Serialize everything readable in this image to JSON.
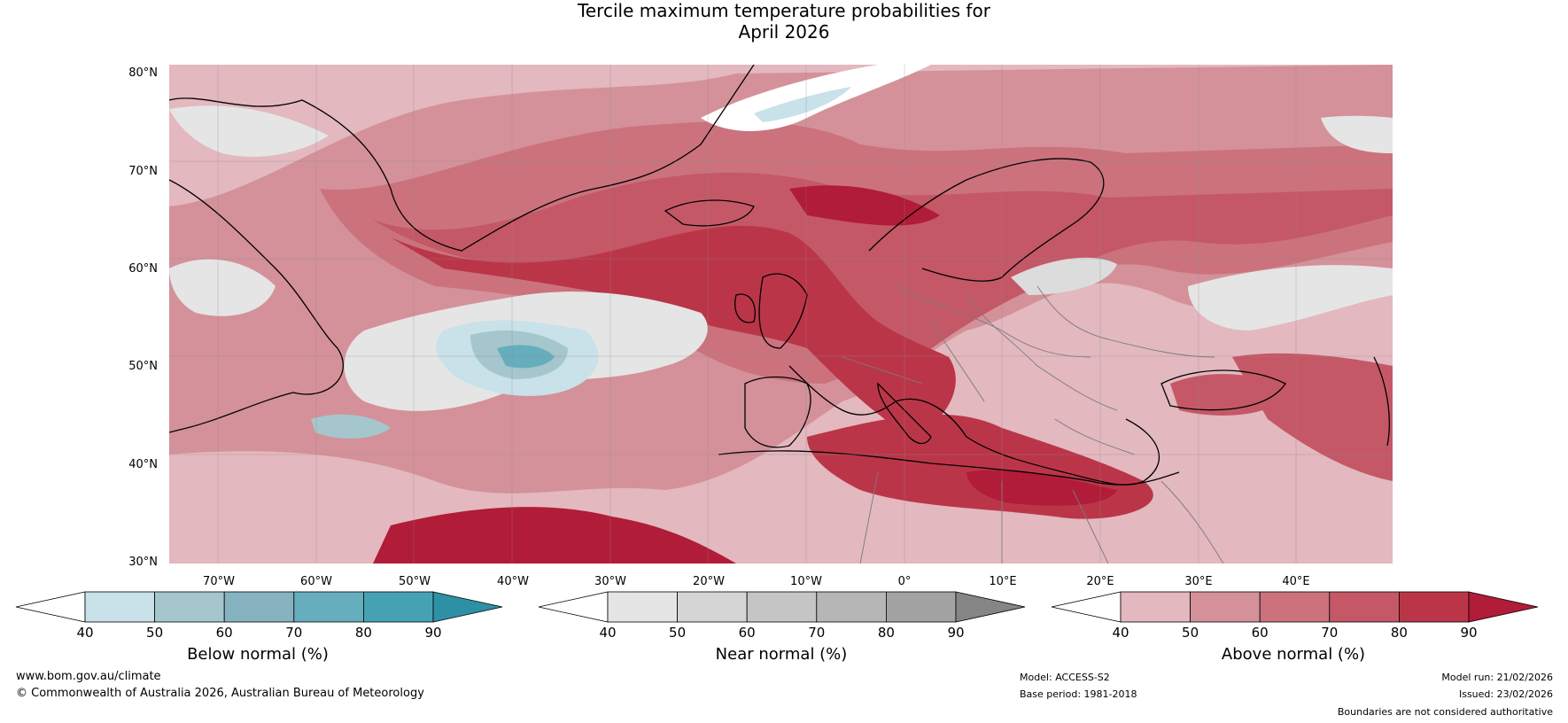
{
  "title": {
    "line1": "Tercile maximum temperature probabilities for",
    "line2": "April 2026"
  },
  "map": {
    "lat_labels": [
      "80°N",
      "70°N",
      "60°N",
      "50°N",
      "40°N",
      "30°N"
    ],
    "lon_labels": [
      "70°W",
      "60°W",
      "50°W",
      "40°W",
      "30°W",
      "20°W",
      "10°W",
      "0°",
      "10°E",
      "20°E",
      "30°E",
      "40°E"
    ],
    "background_color": "#e3b8bf"
  },
  "colorbars": {
    "below": {
      "label": "Below normal (%)",
      "ticks": [
        "40",
        "50",
        "60",
        "70",
        "80",
        "90"
      ],
      "colors": [
        "#ffffff",
        "#c9e1e8",
        "#a5c6cd",
        "#86b3bf",
        "#66aebd",
        "#46a2b3",
        "#2e90a4"
      ]
    },
    "near": {
      "label": "Near normal (%)",
      "ticks": [
        "40",
        "50",
        "60",
        "70",
        "80",
        "90"
      ],
      "colors": [
        "#ffffff",
        "#e5e5e5",
        "#d5d5d5",
        "#c5c5c5",
        "#b6b6b6",
        "#a3a3a3",
        "#858585"
      ]
    },
    "above": {
      "label": "Above normal (%)",
      "ticks": [
        "40",
        "50",
        "60",
        "70",
        "80",
        "90"
      ],
      "colors": [
        "#ffffff",
        "#e3b8bf",
        "#d49199",
        "#cb727d",
        "#c45867",
        "#bb3549",
        "#b11c38"
      ]
    }
  },
  "footer": {
    "website": "www.bom.gov.au/climate",
    "copyright": "© Commonwealth of Australia 2026, Australian Bureau of Meteorology",
    "model": "Model: ACCESS-S2",
    "base_period": "Base period: 1981-2018",
    "model_run": "Model run: 21/02/2026",
    "issued": "Issued: 23/02/2026",
    "disclaimer": "Boundaries are not considered authoritative"
  }
}
